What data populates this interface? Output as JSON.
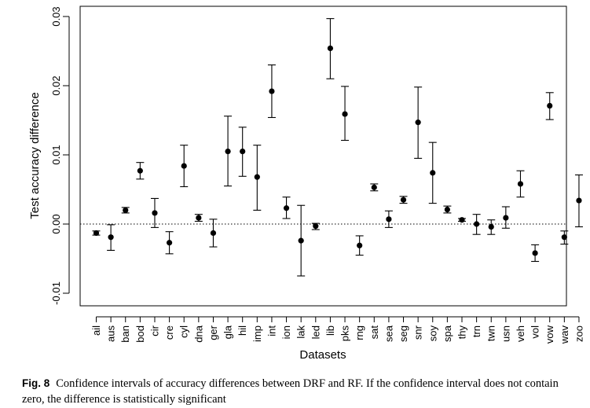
{
  "caption": {
    "label": "Fig. 8",
    "text": "Confidence intervals of accuracy differences between DRF and RF. If the confidence interval does not contain zero, the difference is statistically significant"
  },
  "chart_data": {
    "type": "scatter",
    "xlabel": "Datasets",
    "ylabel": "Test accuracy difference",
    "ylim": [
      -0.012,
      0.031
    ],
    "yticks": [
      "-0.01",
      "0.00",
      "0.01",
      "0.02",
      "0.03"
    ],
    "reference_line": 0,
    "reference_line_style": "dotted",
    "categories": [
      "ail",
      "aus",
      "ban",
      "bod",
      "cir",
      "cre",
      "cyl",
      "dna",
      "ger",
      "gla",
      "hil",
      "imp",
      "int",
      "ion",
      "lak",
      "led",
      "lib",
      "pks",
      "rng",
      "sat",
      "sea",
      "seg",
      "snr",
      "soy",
      "spa",
      "thy",
      "trn",
      "twn",
      "usn",
      "veh",
      "vol",
      "vow",
      "wav",
      "zoo"
    ],
    "values": [
      -0.0013,
      -0.0019,
      0.002,
      0.0077,
      0.0016,
      -0.0027,
      0.0084,
      0.0009,
      -0.0013,
      0.0105,
      0.0105,
      0.0068,
      0.0192,
      0.0023,
      -0.0024,
      -0.0003,
      0.0254,
      0.0159,
      -0.0031,
      0.0053,
      0.0007,
      0.0035,
      0.0147,
      0.0074,
      0.0021,
      0.0006,
      0.0,
      -0.0004,
      0.0009,
      0.0058,
      -0.0042,
      0.0171,
      -0.0019,
      0.0034
    ],
    "lower": [
      -0.0016,
      -0.0038,
      0.0016,
      0.0065,
      -0.0005,
      -0.0043,
      0.0054,
      0.0004,
      -0.0033,
      0.0055,
      0.0069,
      0.002,
      0.0154,
      0.0008,
      -0.0075,
      -0.0008,
      0.021,
      0.0121,
      -0.0045,
      0.0048,
      -0.0005,
      0.003,
      0.0095,
      0.003,
      0.0016,
      0.0004,
      -0.0015,
      -0.0015,
      -0.0006,
      0.0039,
      -0.0054,
      0.0151,
      -0.0029,
      -0.0004
    ],
    "upper": [
      -0.001,
      -0.0001,
      0.0024,
      0.0089,
      0.0037,
      -0.0011,
      0.0114,
      0.0014,
      0.0007,
      0.0156,
      0.014,
      0.0114,
      0.023,
      0.0039,
      0.0027,
      0.0001,
      0.0297,
      0.0199,
      -0.0017,
      0.0058,
      0.0019,
      0.004,
      0.0198,
      0.0118,
      0.0026,
      0.0008,
      0.0014,
      0.0006,
      0.0025,
      0.0077,
      -0.003,
      0.019,
      -0.001,
      0.0071
    ]
  }
}
